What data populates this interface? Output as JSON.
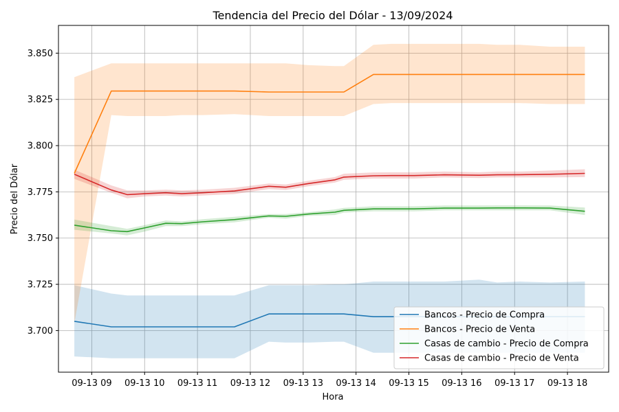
{
  "chart_data": {
    "type": "line",
    "title": "Tendencia del Precio del Dólar - 13/09/2024",
    "xlabel": "Hora",
    "ylabel": "Precio del Dólar",
    "xlim": [
      8.37,
      18.78
    ],
    "ylim": [
      3.6775,
      3.865
    ],
    "x_ticks": [
      {
        "value": 9,
        "label": "09-13 09"
      },
      {
        "value": 10,
        "label": "09-13 10"
      },
      {
        "value": 11,
        "label": "09-13 11"
      },
      {
        "value": 12,
        "label": "09-13 12"
      },
      {
        "value": 13,
        "label": "09-13 13"
      },
      {
        "value": 14,
        "label": "09-13 14"
      },
      {
        "value": 15,
        "label": "09-13 15"
      },
      {
        "value": 16,
        "label": "09-13 16"
      },
      {
        "value": 17,
        "label": "09-13 17"
      },
      {
        "value": 18,
        "label": "09-13 18"
      }
    ],
    "y_ticks": [
      {
        "value": 3.7,
        "label": "3.700"
      },
      {
        "value": 3.725,
        "label": "3.725"
      },
      {
        "value": 3.75,
        "label": "3.750"
      },
      {
        "value": 3.775,
        "label": "3.775"
      },
      {
        "value": 3.8,
        "label": "3.800"
      },
      {
        "value": 3.825,
        "label": "3.825"
      },
      {
        "value": 3.85,
        "label": "3.850"
      }
    ],
    "grid": true,
    "legend_position": "lower-right",
    "series": [
      {
        "name": "Bancos - Precio de Compra",
        "color": "#1f77b4",
        "x": [
          8.67,
          9.37,
          9.67,
          10.4,
          10.7,
          11.1,
          11.7,
          12.35,
          12.67,
          13.1,
          13.6,
          13.77,
          14.33,
          14.67,
          15.1,
          15.67,
          16.33,
          16.67,
          17.1,
          17.67,
          18.33
        ],
        "y": [
          3.705,
          3.702,
          3.702,
          3.702,
          3.702,
          3.702,
          3.702,
          3.709,
          3.709,
          3.709,
          3.709,
          3.709,
          3.7075,
          3.7075,
          3.7075,
          3.7075,
          3.7075,
          3.7075,
          3.7075,
          3.7075,
          3.7075
        ],
        "lower": [
          3.686,
          3.685,
          3.685,
          3.685,
          3.685,
          3.685,
          3.685,
          3.694,
          3.6935,
          3.6935,
          3.694,
          3.694,
          3.688,
          3.688,
          3.688,
          3.688,
          3.688,
          3.688,
          3.688,
          3.688,
          3.688
        ],
        "upper": [
          3.7245,
          3.72,
          3.719,
          3.719,
          3.719,
          3.719,
          3.719,
          3.7245,
          3.7245,
          3.7245,
          3.725,
          3.725,
          3.7265,
          3.7265,
          3.7265,
          3.7265,
          3.7275,
          3.726,
          3.7265,
          3.726,
          3.7265
        ]
      },
      {
        "name": "Bancos - Precio de Venta",
        "color": "#ff7f0e",
        "x": [
          8.67,
          9.37,
          9.67,
          10.4,
          10.7,
          11.1,
          11.7,
          12.35,
          12.67,
          13.1,
          13.6,
          13.77,
          14.33,
          14.67,
          15.1,
          15.67,
          16.33,
          16.67,
          17.1,
          17.67,
          18.33
        ],
        "y": [
          3.785,
          3.8295,
          3.8295,
          3.8295,
          3.8295,
          3.8295,
          3.8295,
          3.829,
          3.829,
          3.829,
          3.829,
          3.829,
          3.8385,
          3.8385,
          3.8385,
          3.8385,
          3.8385,
          3.8385,
          3.8385,
          3.8385,
          3.8385
        ],
        "lower": [
          3.704,
          3.8165,
          3.816,
          3.816,
          3.8165,
          3.8165,
          3.817,
          3.816,
          3.816,
          3.816,
          3.816,
          3.816,
          3.8225,
          3.823,
          3.823,
          3.823,
          3.823,
          3.823,
          3.823,
          3.8225,
          3.8225
        ],
        "upper": [
          3.837,
          3.8445,
          3.8445,
          3.8445,
          3.8445,
          3.8445,
          3.8445,
          3.8445,
          3.8445,
          3.8435,
          3.843,
          3.843,
          3.8545,
          3.855,
          3.855,
          3.855,
          3.855,
          3.8545,
          3.8545,
          3.8535,
          3.8535
        ]
      },
      {
        "name": "Casas de cambio - Precio de Compra",
        "color": "#2ca02c",
        "x": [
          8.67,
          9.37,
          9.67,
          10.0,
          10.4,
          10.7,
          11.1,
          11.7,
          12.35,
          12.67,
          13.1,
          13.6,
          13.77,
          14.33,
          14.67,
          15.1,
          15.67,
          16.33,
          16.67,
          17.1,
          17.67,
          18.33
        ],
        "y": [
          3.757,
          3.754,
          3.7535,
          3.7555,
          3.758,
          3.7578,
          3.7588,
          3.76,
          3.762,
          3.7618,
          3.763,
          3.764,
          3.765,
          3.7658,
          3.7658,
          3.7658,
          3.7662,
          3.7662,
          3.7663,
          3.7663,
          3.7662,
          3.7645
        ],
        "lower": [
          3.7545,
          3.7525,
          3.7515,
          3.7535,
          3.7565,
          3.7565,
          3.7575,
          3.7585,
          3.761,
          3.7605,
          3.762,
          3.7625,
          3.7638,
          3.7645,
          3.7645,
          3.7645,
          3.765,
          3.765,
          3.765,
          3.765,
          3.765,
          3.7625
        ],
        "upper": [
          3.76,
          3.7565,
          3.755,
          3.757,
          3.7595,
          3.759,
          3.7602,
          3.7615,
          3.763,
          3.763,
          3.764,
          3.7655,
          3.7663,
          3.7672,
          3.7672,
          3.7672,
          3.7676,
          3.7676,
          3.7677,
          3.7677,
          3.7676,
          3.7665
        ]
      },
      {
        "name": "Casas de cambio - Precio de Venta",
        "color": "#d62728",
        "x": [
          8.67,
          9.37,
          9.67,
          10.0,
          10.4,
          10.7,
          11.1,
          11.7,
          12.35,
          12.67,
          13.1,
          13.6,
          13.77,
          14.33,
          14.67,
          15.1,
          15.67,
          16.33,
          16.67,
          17.1,
          17.67,
          18.33
        ],
        "y": [
          3.7845,
          3.776,
          3.7735,
          3.774,
          3.7745,
          3.774,
          3.7745,
          3.7755,
          3.778,
          3.7775,
          3.7795,
          3.7815,
          3.783,
          3.7837,
          3.7838,
          3.7838,
          3.7842,
          3.784,
          3.7842,
          3.7843,
          3.7845,
          3.785
        ],
        "lower": [
          3.782,
          3.7745,
          3.7715,
          3.7725,
          3.773,
          3.7725,
          3.773,
          3.7738,
          3.7765,
          3.776,
          3.778,
          3.78,
          3.7815,
          3.7822,
          3.7822,
          3.7822,
          3.7828,
          3.7825,
          3.7828,
          3.7828,
          3.7828,
          3.783
        ],
        "upper": [
          3.787,
          3.7785,
          3.7758,
          3.7758,
          3.7762,
          3.7758,
          3.7762,
          3.7772,
          3.7795,
          3.779,
          3.781,
          3.783,
          3.7848,
          3.7855,
          3.7856,
          3.7856,
          3.786,
          3.7856,
          3.786,
          3.786,
          3.7865,
          3.7872
        ]
      }
    ]
  }
}
